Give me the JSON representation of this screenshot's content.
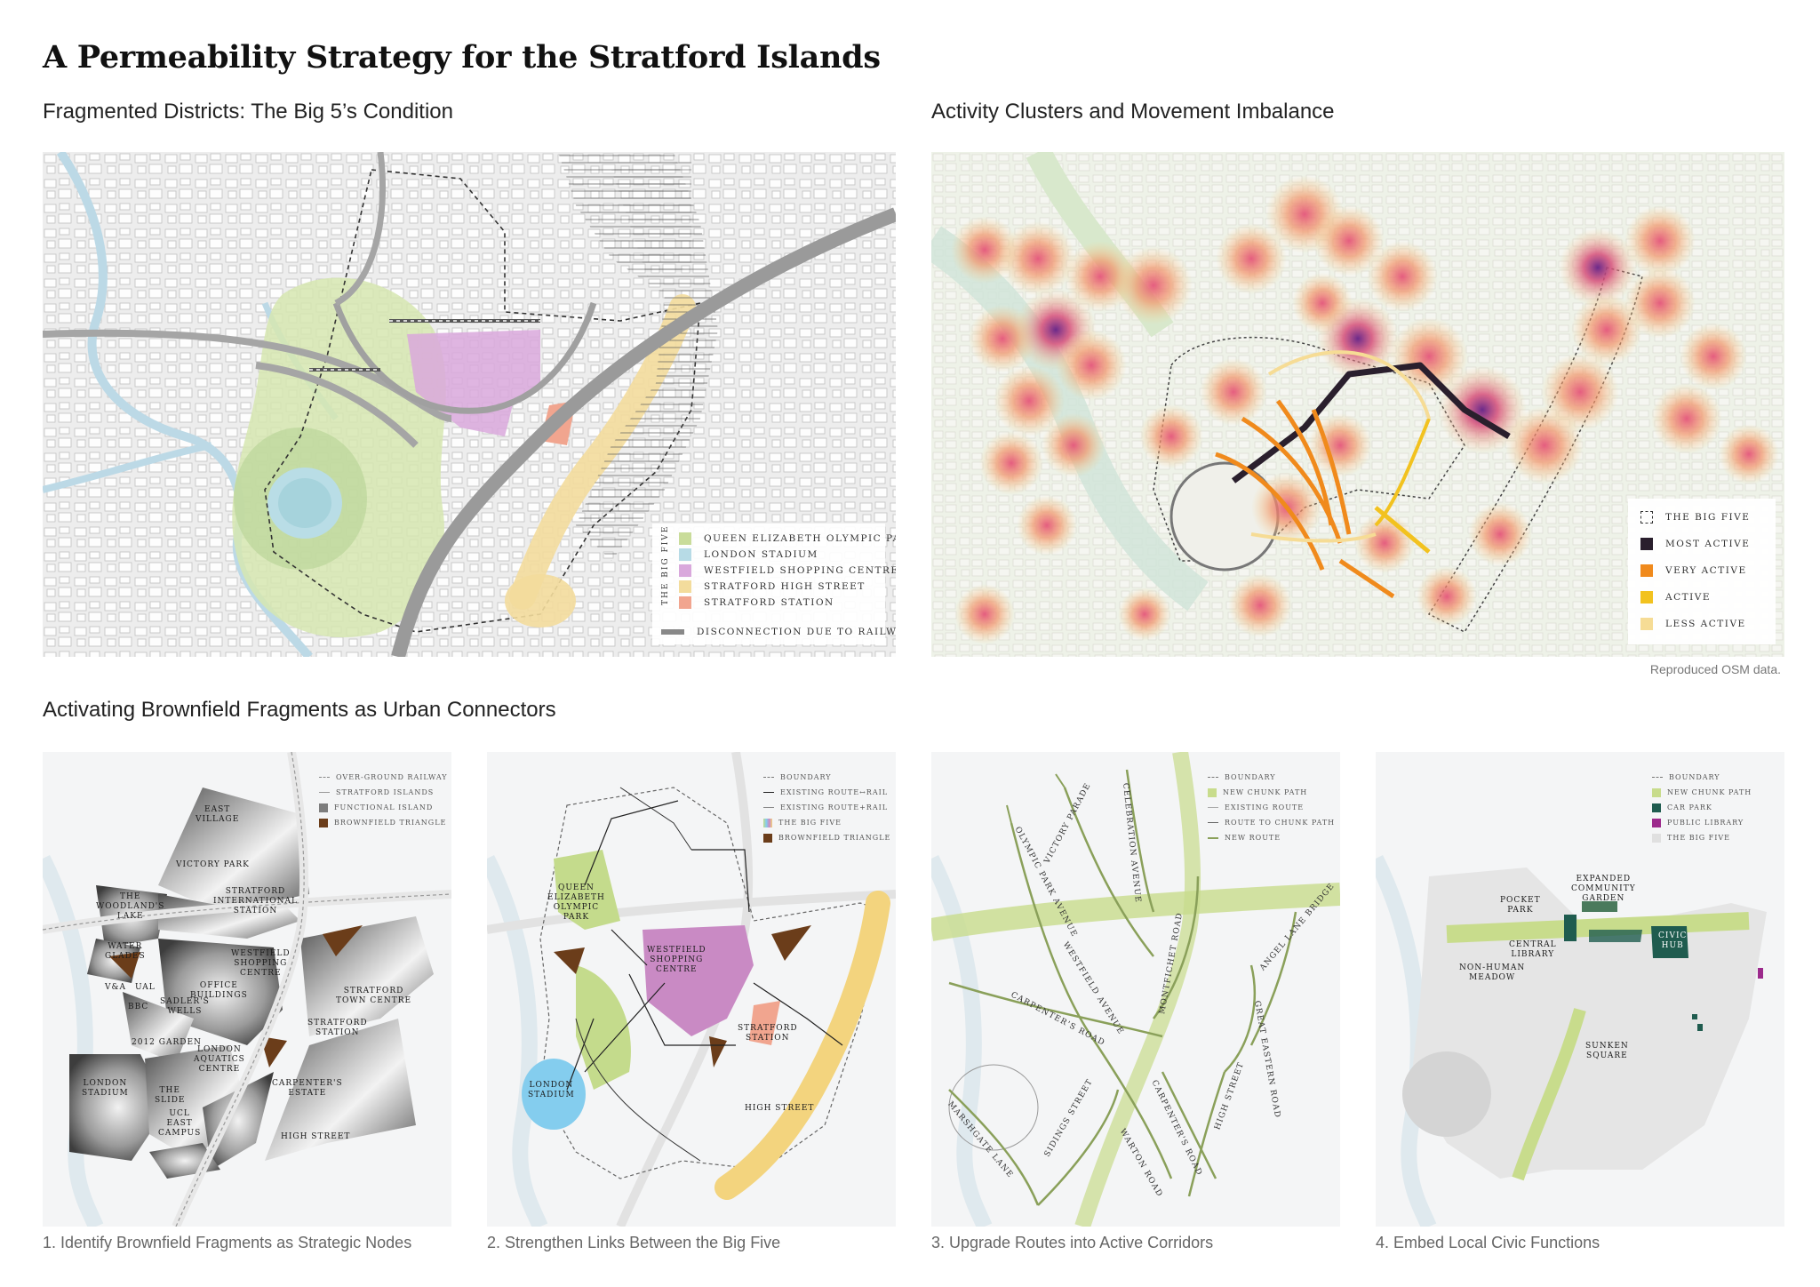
{
  "title": "A Permeability Strategy for the Stratford Islands",
  "sections": {
    "fragmented": "Fragmented Districts: The Big 5’s Condition",
    "activity": "Activity Clusters and Movement Imbalance",
    "activating": "Activating Brownfield Fragments as Urban Connectors"
  },
  "credit": "Reproduced OSM data.",
  "panel1_legend": {
    "vertical_title": "THE BIG FIVE",
    "items": [
      {
        "label": "QUEEN ELIZABETH OLYMPIC PARK",
        "color": "#c9dc9a"
      },
      {
        "label": "LONDON STADIUM",
        "color": "#b7dbe6"
      },
      {
        "label": "WESTFIELD SHOPPING CENTRE",
        "color": "#d9a8dc"
      },
      {
        "label": "STRATFORD HIGH STREET",
        "color": "#f3dc9c"
      },
      {
        "label": "STRATFORD STATION",
        "color": "#f1a58f"
      }
    ],
    "railway_label": "DISCONNECTION DUE TO RAILWAY"
  },
  "panel2_legend": {
    "items": [
      {
        "label": "THE BIG FIVE",
        "color": "none"
      },
      {
        "label": "MOST ACTIVE",
        "color": "#2a1f2d"
      },
      {
        "label": "VERY ACTIVE",
        "color": "#f08a1c"
      },
      {
        "label": "ACTIVE",
        "color": "#f2c21f"
      },
      {
        "label": "LESS ACTIVE",
        "color": "#f6dc95"
      }
    ]
  },
  "step1": {
    "caption": "1. Identify Brownfield Fragments as Strategic Nodes",
    "legend": [
      "OVER-GROUND RAILWAY",
      "STRATFORD ISLANDS",
      "FUNCTIONAL ISLAND",
      "BROWNFIELD TRIANGLE"
    ],
    "labels": [
      "EAST\nVILLAGE",
      "VICTORY PARK",
      "THE\nWOODLAND'S\nLAKE",
      "STRATFORD\nINTERNATIONAL\nSTATION",
      "WATER\nGLADES",
      "WESTFIELD\nSHOPPING\nCENTRE",
      "OFFICE\nBUILDINGS",
      "STRATFORD\nTOWN CENTRE",
      "V&A",
      "UAL",
      "SADLER'S\nWELLS",
      "BBC",
      "2012 GARDEN",
      "STRATFORD\nSTATION",
      "LONDON\nAQUATICS\nCENTRE",
      "LONDON\nSTADIUM",
      "THE\nSLIDE",
      "UCL\nEAST\nCAMPUS",
      "CARPENTER'S\nESTATE",
      "HIGH STREET"
    ]
  },
  "step2": {
    "caption": "2. Strengthen Links Between the Big Five",
    "legend": [
      "BOUNDARY",
      "EXISTING ROUTE↔RAIL",
      "EXISTING ROUTE+RAIL",
      "THE BIG FIVE",
      "BROWNFIELD TRIANGLE"
    ],
    "labels": [
      "QUEEN\nELIZABETH\nOLYMPIC\nPARK",
      "WESTFIELD\nSHOPPING\nCENTRE",
      "STRATFORD\nSTATION",
      "LONDON\nSTADIUM",
      "HIGH STREET"
    ]
  },
  "step3": {
    "caption": "3. Upgrade Routes into Active Corridors",
    "legend": [
      "BOUNDARY",
      "NEW CHUNK PATH",
      "EXISTING ROUTE",
      "ROUTE TO CHUNK PATH",
      "NEW ROUTE"
    ],
    "streets": [
      "OLYMPIC PARK AVENUE",
      "VICTORY PARADE",
      "CELEBRATION AVENUE",
      "WESTFIELD AVENUE",
      "MONTFICHET ROAD",
      "ANGEL LANE BRIDGE",
      "GREAT EASTERN ROAD",
      "CARPENTER'S ROAD",
      "MARSHGATE LANE",
      "SIDINGS STREET",
      "WARTON ROAD",
      "CARPENTER'S ROAD",
      "HIGH STREET"
    ]
  },
  "step4": {
    "caption": "4. Embed Local Civic Functions",
    "legend": [
      "BOUNDARY",
      "NEW CHUNK PATH",
      "CAR PARK",
      "PUBLIC LIBRARY",
      "THE BIG FIVE"
    ],
    "labels": [
      "EXPANDED\nCOMMUNITY\nGARDEN",
      "POCKET\nPARK",
      "CENTRAL\nLIBRARY",
      "CIVIC\nHUB",
      "NON-HUMAN\nMEADOW",
      "SUNKEN\nSQUARE"
    ]
  }
}
